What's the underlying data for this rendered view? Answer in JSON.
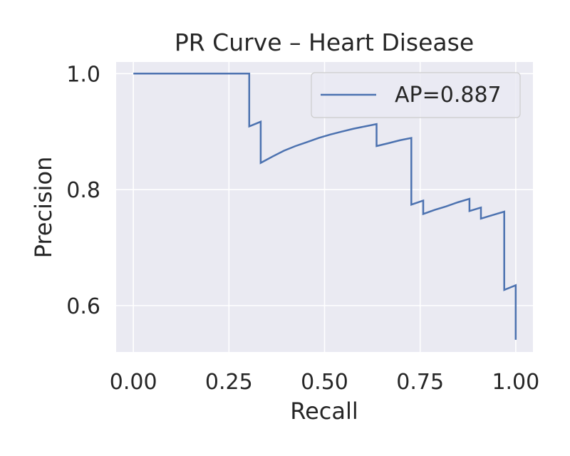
{
  "chart_data": {
    "type": "line",
    "title": "PR Curve – Heart Disease",
    "xlabel": "Recall",
    "ylabel": "Precision",
    "xlim": [
      -0.045,
      1.045
    ],
    "ylim": [
      0.52,
      1.02
    ],
    "xticks": [
      0.0,
      0.25,
      0.5,
      0.75,
      1.0
    ],
    "xtick_labels": [
      "0.00",
      "0.25",
      "0.50",
      "0.75",
      "1.00"
    ],
    "yticks": [
      0.6,
      0.8,
      1.0
    ],
    "ytick_labels": [
      "0.6",
      "0.8",
      "1.0"
    ],
    "grid": true,
    "legend_position": "top-right",
    "series": [
      {
        "name": "AP=0.887",
        "color": "#4c72b0",
        "x": [
          0.0,
          0.303,
          0.303,
          0.333,
          0.333,
          0.364,
          0.394,
          0.424,
          0.455,
          0.485,
          0.515,
          0.545,
          0.576,
          0.606,
          0.636,
          0.636,
          0.667,
          0.697,
          0.727,
          0.727,
          0.758,
          0.758,
          0.788,
          0.818,
          0.848,
          0.879,
          0.879,
          0.909,
          0.909,
          0.939,
          0.97,
          0.97,
          1.0,
          1.0
        ],
        "y": [
          1.0,
          1.0,
          0.909,
          0.917,
          0.846,
          0.857,
          0.867,
          0.875,
          0.882,
          0.889,
          0.895,
          0.9,
          0.905,
          0.909,
          0.913,
          0.875,
          0.88,
          0.885,
          0.889,
          0.774,
          0.781,
          0.758,
          0.765,
          0.771,
          0.778,
          0.784,
          0.763,
          0.769,
          0.75,
          0.756,
          0.762,
          0.627,
          0.635,
          0.541
        ]
      }
    ]
  }
}
